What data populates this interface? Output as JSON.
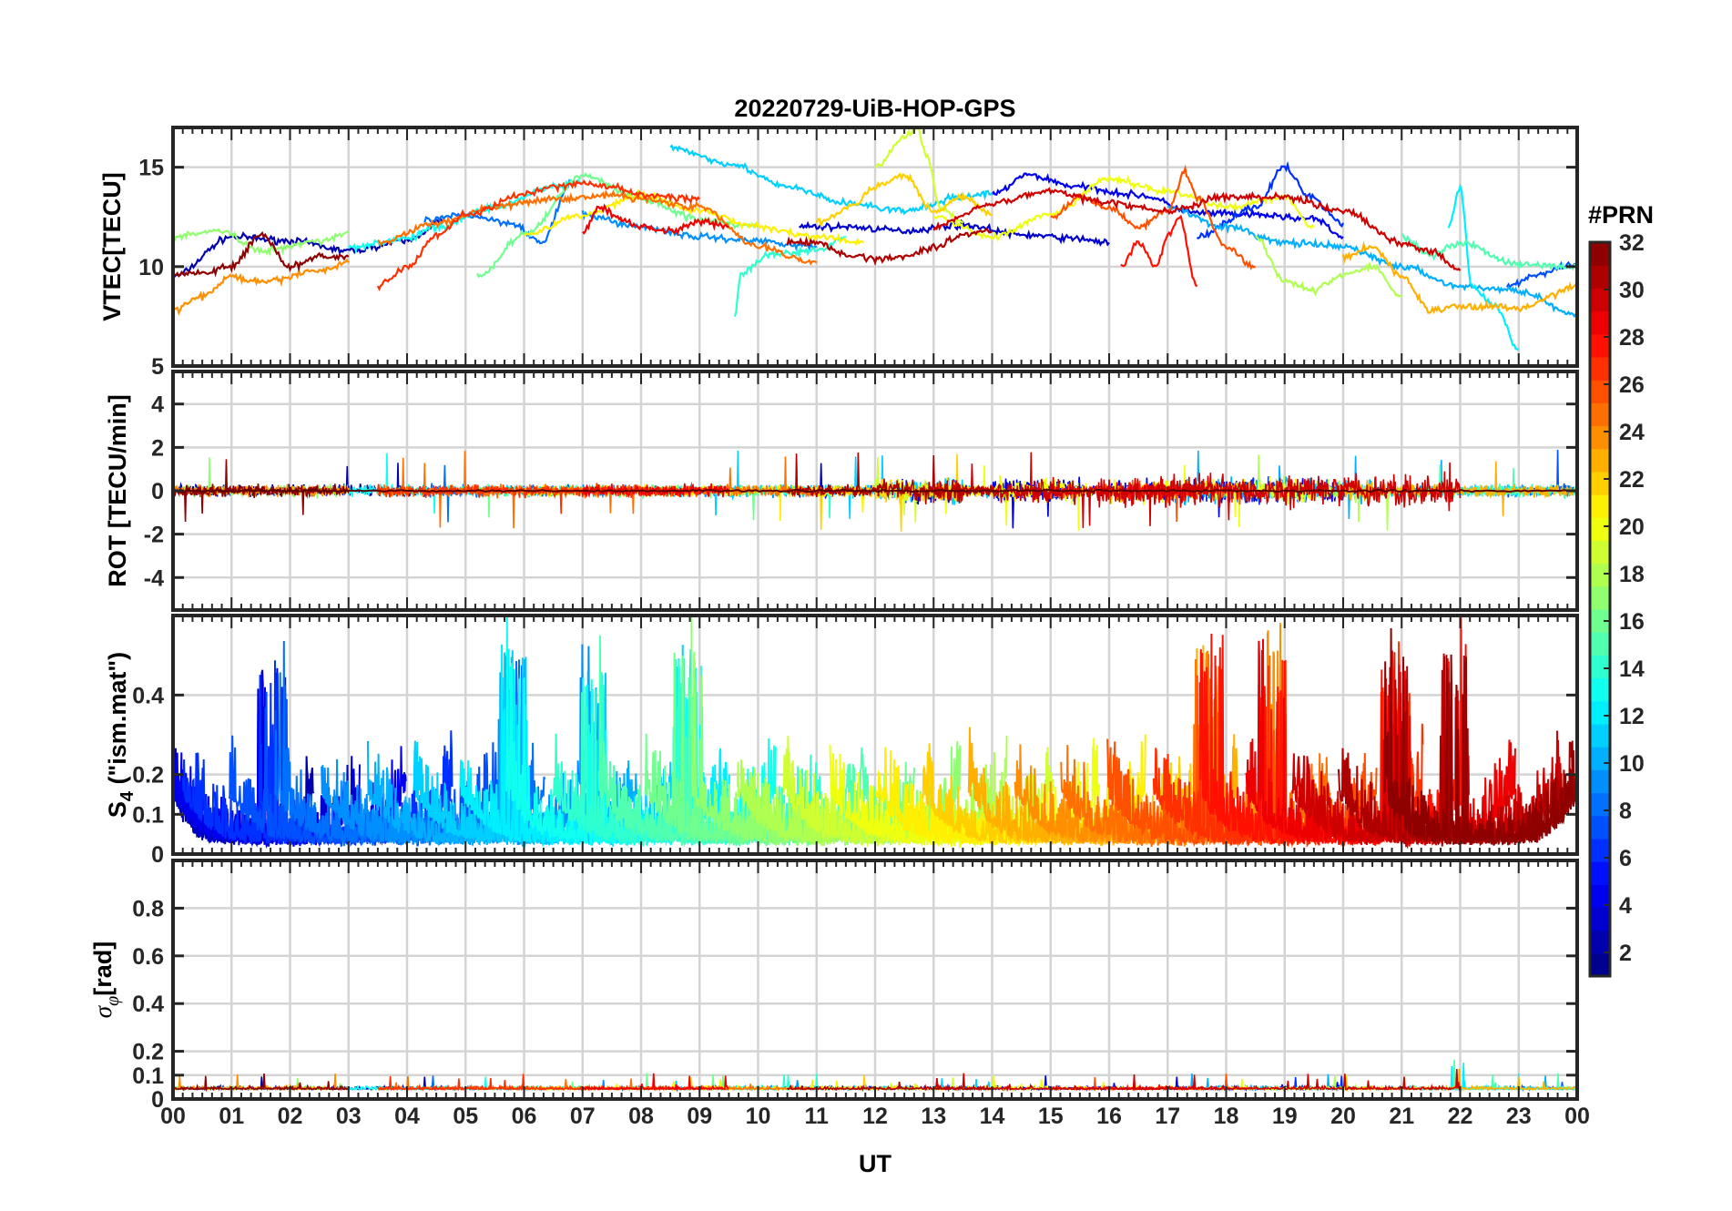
{
  "figure": {
    "title": "20220729-UiB-HOP-GPS",
    "xlabel": "UT",
    "x_tick_labels": [
      "00",
      "01",
      "02",
      "03",
      "04",
      "05",
      "06",
      "07",
      "08",
      "09",
      "10",
      "11",
      "12",
      "13",
      "14",
      "15",
      "16",
      "17",
      "18",
      "19",
      "20",
      "21",
      "22",
      "23",
      "00"
    ]
  },
  "colorbar": {
    "title": "#PRN",
    "range": [
      1,
      32
    ],
    "colormap": "jet",
    "levels": 32,
    "tick_labels": [
      "2",
      "4",
      "6",
      "8",
      "10",
      "12",
      "14",
      "16",
      "18",
      "20",
      "22",
      "24",
      "26",
      "28",
      "30",
      "32"
    ]
  },
  "chart_data": [
    {
      "type": "line",
      "panel": "vtec",
      "ylabel": "VTEC[TECU]",
      "xlim": [
        0,
        24
      ],
      "ylim": [
        5,
        17
      ],
      "y_ticks": [
        5,
        10,
        15
      ],
      "grid": true,
      "color_by": "PRN",
      "series_note_values_estimated": true,
      "series": [
        {
          "prn": 2,
          "x": [
            0.0,
            1.0,
            2.0,
            3.0,
            4.0,
            4.6
          ],
          "y": [
            9.5,
            11.5,
            11.3,
            10.8,
            11.3,
            12.3
          ]
        },
        {
          "prn": 3,
          "x": [
            10.7,
            11.5,
            12.5,
            13.5,
            14.5,
            15.5,
            16.0
          ],
          "y": [
            12.0,
            12.0,
            11.8,
            12.1,
            11.6,
            11.4,
            11.2
          ]
        },
        {
          "prn": 4,
          "x": [
            14.0,
            14.6,
            15.5,
            16.5,
            17.5,
            18.5,
            19.5,
            20.0
          ],
          "y": [
            13.6,
            14.6,
            14.0,
            13.6,
            12.7,
            12.6,
            12.4,
            11.5
          ]
        },
        {
          "prn": 6,
          "x": [
            17.5,
            18.5,
            19.0,
            19.4,
            20.0
          ],
          "y": [
            11.5,
            13.0,
            15.0,
            13.6,
            12.2
          ]
        },
        {
          "prn": 7,
          "x": [
            22.8,
            23.3,
            24.0
          ],
          "y": [
            9.0,
            9.6,
            10.1
          ]
        },
        {
          "prn": 8,
          "x": [
            4.3,
            5.0,
            5.8,
            6.3,
            6.8
          ],
          "y": [
            12.3,
            12.6,
            12.2,
            11.2,
            14.2
          ]
        },
        {
          "prn": 9,
          "x": [
            7.0,
            8.0,
            9.0,
            10.0,
            11.0
          ],
          "y": [
            12.6,
            12.0,
            11.5,
            11.3,
            11.0
          ]
        },
        {
          "prn": 10,
          "x": [
            17.0,
            18.0,
            19.0,
            20.0,
            21.0,
            22.0,
            23.0,
            24.0
          ],
          "y": [
            13.0,
            12.0,
            11.2,
            11.0,
            10.0,
            9.0,
            8.8,
            7.5
          ]
        },
        {
          "prn": 11,
          "x": [
            8.5,
            9.5,
            10.5,
            11.5,
            12.5,
            13.5,
            14.0
          ],
          "y": [
            16.0,
            15.2,
            14.0,
            13.2,
            12.8,
            13.5,
            13.7
          ]
        },
        {
          "prn": 12,
          "x": [
            21.8,
            22.0,
            22.2,
            22.6,
            23.0
          ],
          "y": [
            12.0,
            14.0,
            9.0,
            8.0,
            5.8
          ]
        },
        {
          "prn": 13,
          "x": [
            3.0,
            4.0,
            4.5,
            5.5,
            6.5,
            7.0
          ],
          "y": [
            11.0,
            11.4,
            12.0,
            13.0,
            14.0,
            14.2
          ]
        },
        {
          "prn": 14,
          "x": [
            9.6,
            9.7,
            10.2,
            11.0,
            11.5
          ],
          "y": [
            7.4,
            9.6,
            10.6,
            10.8,
            11.5
          ]
        },
        {
          "prn": 15,
          "x": [
            21.0,
            21.5,
            22.0,
            23.0,
            24.0
          ],
          "y": [
            11.5,
            10.6,
            11.2,
            10.1,
            10.0
          ]
        },
        {
          "prn": 16,
          "x": [
            5.2,
            6.0,
            7.0,
            8.0,
            9.0,
            10.0
          ],
          "y": [
            9.5,
            11.6,
            14.6,
            13.4,
            12.4,
            12.0
          ]
        },
        {
          "prn": 17,
          "x": [
            0.0,
            0.8,
            1.5,
            2.5,
            3.0
          ],
          "y": [
            11.5,
            11.8,
            10.8,
            11.3,
            11.7
          ]
        },
        {
          "prn": 18,
          "x": [
            18.5,
            19.0,
            19.5,
            20.0,
            20.5,
            21.0
          ],
          "y": [
            11.5,
            9.3,
            8.8,
            9.6,
            10.0,
            8.5
          ]
        },
        {
          "prn": 19,
          "x": [
            12.0,
            12.5,
            12.7,
            12.9,
            13.1,
            13.5
          ],
          "y": [
            15.0,
            16.5,
            17.0,
            15.5,
            13.0,
            12.2
          ]
        },
        {
          "prn": 20,
          "x": [
            13.0,
            14.0,
            15.0,
            16.0,
            17.0,
            18.0,
            19.0,
            19.5
          ],
          "y": [
            12.5,
            11.5,
            12.6,
            14.4,
            13.8,
            13.0,
            13.5,
            12.0
          ]
        },
        {
          "prn": 21,
          "x": [
            6.0,
            7.0,
            8.0,
            9.0,
            10.0,
            11.0,
            11.8
          ],
          "y": [
            11.6,
            12.6,
            13.6,
            12.8,
            12.0,
            11.5,
            11.2
          ]
        },
        {
          "prn": 22,
          "x": [
            11.0,
            11.6,
            12.0,
            12.5,
            13.0,
            13.5,
            14.0
          ],
          "y": [
            12.2,
            13.0,
            14.0,
            14.6,
            12.8,
            13.5,
            12.6
          ]
        },
        {
          "prn": 23,
          "x": [
            20.0,
            20.5,
            21.0,
            21.5,
            22.0,
            22.5,
            23.0,
            24.0
          ],
          "y": [
            10.5,
            11.0,
            9.5,
            7.8,
            8.0,
            8.0,
            7.9,
            9.0
          ]
        },
        {
          "prn": 24,
          "x": [
            0.0,
            0.5,
            1.0,
            1.5,
            2.5,
            3.0
          ],
          "y": [
            7.8,
            8.5,
            9.5,
            9.2,
            9.8,
            10.2
          ]
        },
        {
          "prn": 25,
          "x": [
            3.5,
            4.5,
            5.5,
            6.5,
            7.5,
            8.0,
            9.0,
            10.0,
            11.0
          ],
          "y": [
            11.2,
            12.2,
            13.0,
            13.4,
            13.6,
            13.4,
            13.0,
            11.0,
            10.2
          ]
        },
        {
          "prn": 26,
          "x": [
            15.0,
            15.5,
            16.0,
            16.5,
            17.0,
            17.3,
            17.5,
            18.0,
            18.5
          ],
          "y": [
            12.5,
            13.5,
            13.0,
            12.0,
            12.8,
            14.8,
            13.5,
            11.0,
            10.0
          ]
        },
        {
          "prn": 27,
          "x": [
            3.5,
            4.0,
            4.5,
            5.0,
            6.0,
            6.5,
            7.0,
            7.5,
            8.0,
            9.0
          ],
          "y": [
            9.0,
            10.0,
            11.6,
            12.6,
            13.6,
            14.0,
            14.2,
            14.0,
            13.6,
            13.4
          ]
        },
        {
          "prn": 28,
          "x": [
            16.2,
            16.5,
            16.8,
            17.0,
            17.2,
            17.5
          ],
          "y": [
            10.0,
            11.2,
            10.0,
            11.5,
            12.5,
            9.0
          ]
        },
        {
          "prn": 29,
          "x": [
            7.0,
            7.3,
            7.6,
            8.0,
            8.5,
            9.0,
            9.5
          ],
          "y": [
            11.7,
            13.0,
            12.5,
            12.0,
            11.8,
            12.3,
            12.0
          ]
        },
        {
          "prn": 30,
          "x": [
            13.0,
            14.0,
            15.0,
            16.0,
            17.0,
            18.0,
            19.0,
            20.0,
            21.0,
            21.5,
            22.0
          ],
          "y": [
            12.0,
            13.2,
            13.8,
            13.2,
            12.8,
            13.5,
            13.5,
            12.8,
            11.2,
            10.8,
            9.8
          ]
        },
        {
          "prn": 31,
          "x": [
            10.5,
            11.0,
            11.5,
            12.0,
            12.5,
            13.0,
            13.5,
            14.0
          ],
          "y": [
            11.2,
            11.2,
            10.6,
            10.4,
            10.5,
            11.0,
            11.6,
            11.8
          ]
        },
        {
          "prn": 32,
          "x": [
            0.0,
            0.5,
            1.0,
            1.5,
            2.0,
            2.5,
            3.0
          ],
          "y": [
            9.6,
            9.7,
            10.0,
            11.6,
            10.0,
            10.5,
            10.5
          ]
        }
      ]
    },
    {
      "type": "line",
      "panel": "rot",
      "ylabel": "ROT [TECU/min]",
      "xlim": [
        0,
        24
      ],
      "ylim": [
        -5.5,
        5.5
      ],
      "y_ticks": [
        -4,
        -2,
        0,
        2,
        4
      ],
      "grid": true,
      "color_by": "PRN",
      "description_values": "noise around 0, typical amplitude 0.3-0.8 TECU/min, peaks to about 2 near 12-13 UT and 14-15 UT, minimum about -2 near 16.6 UT"
    },
    {
      "type": "line",
      "panel": "s4",
      "ylabel": "S4 (\"ism.mat\")",
      "xlim": [
        0,
        24
      ],
      "ylim": [
        0,
        0.6
      ],
      "y_ticks": [
        0,
        0.1,
        0.2,
        0.4
      ],
      "y_tick_labels": [
        "0",
        "0.1",
        "0.2",
        "0.4"
      ],
      "grid": true,
      "color_by": "PRN",
      "peak_values": {
        "1.7": 0.57,
        "5.8": 0.6,
        "7.2": 0.56,
        "8.8": 0.6,
        "17.7": 0.6,
        "18.8": 0.6,
        "20.9": 0.6,
        "21.9": 0.6
      }
    },
    {
      "type": "line",
      "panel": "sigma_phi",
      "ylabel": "σφ[rad]",
      "xlim": [
        0,
        24
      ],
      "ylim": [
        0,
        1.0
      ],
      "y_ticks": [
        0,
        0.1,
        0.2,
        0.4,
        0.6,
        0.8
      ],
      "y_tick_labels": [
        "0",
        "0.1",
        "0.2",
        "0.4",
        "0.6",
        "0.8"
      ],
      "grid": true,
      "color_by": "PRN",
      "typical_value": 0.04,
      "max_value": 0.17
    }
  ]
}
